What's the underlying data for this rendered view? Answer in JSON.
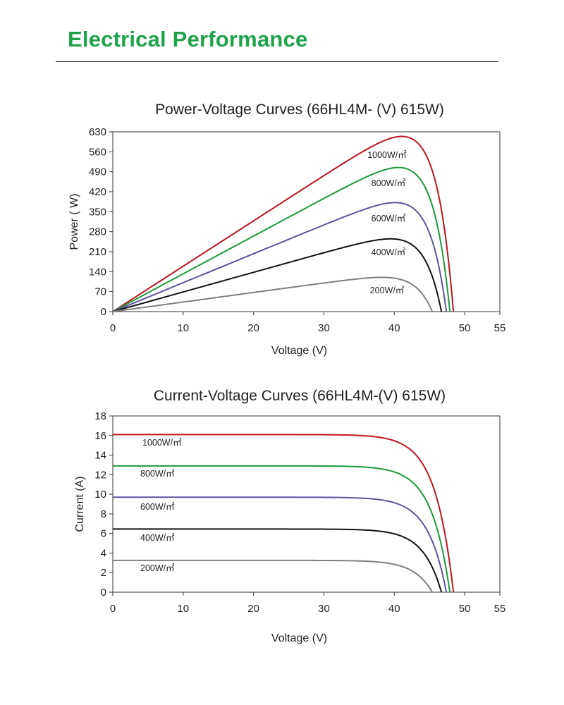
{
  "header": {
    "title": "Electrical Performance"
  },
  "chart_data": [
    {
      "type": "line",
      "title": "Power-Voltage Curves (66HL4M- (V)  615W)",
      "xlabel": "Voltage (V)",
      "ylabel": "Power ( W)",
      "xlim": [
        0,
        55
      ],
      "ylim": [
        0,
        630
      ],
      "xticks": [
        "0",
        "10",
        "20",
        "30",
        "40",
        "50",
        "55"
      ],
      "yticks": [
        "0",
        "70",
        "140",
        "210",
        "280",
        "350",
        "420",
        "490",
        "560",
        "630"
      ],
      "grid": false,
      "series": [
        {
          "name": "1000W/㎡",
          "color": "#c0141c",
          "isc": 16.1,
          "voc": 48.4,
          "vmp": 40.0,
          "pmax": 614
        },
        {
          "name": "800W/㎡",
          "color": "#1c9a3a",
          "isc": 12.9,
          "voc": 47.9,
          "vmp": 40.0,
          "pmax": 505
        },
        {
          "name": "600W/㎡",
          "color": "#5a55a0",
          "isc": 9.7,
          "voc": 47.4,
          "vmp": 39.8,
          "pmax": 382
        },
        {
          "name": "400W/㎡",
          "color": "#111111",
          "isc": 6.45,
          "voc": 46.7,
          "vmp": 39.7,
          "pmax": 255
        },
        {
          "name": "200W/㎡",
          "color": "#7f7f7f",
          "isc": 3.25,
          "voc": 45.4,
          "vmp": 39.0,
          "pmax": 120
        }
      ]
    },
    {
      "type": "line",
      "title": "Current-Voltage Curves (66HL4M-(V) 615W)",
      "xlabel": "Voltage (V)",
      "ylabel": "Current (A)",
      "xlim": [
        0,
        55
      ],
      "ylim": [
        0,
        18
      ],
      "xticks": [
        "0",
        "10",
        "20",
        "30",
        "40",
        "50",
        "55"
      ],
      "yticks": [
        "0",
        "2",
        "4",
        "6",
        "8",
        "10",
        "12",
        "14",
        "16",
        "18"
      ],
      "grid": false,
      "series": [
        {
          "name": "1000W/㎡",
          "color": "#c0141c",
          "isc": 16.1,
          "voc": 48.4
        },
        {
          "name": "800W/㎡",
          "color": "#1c9a3a",
          "isc": 12.9,
          "voc": 47.9
        },
        {
          "name": "600W/㎡",
          "color": "#5a55a0",
          "isc": 9.7,
          "voc": 47.4
        },
        {
          "name": "400W/㎡",
          "color": "#111111",
          "isc": 6.45,
          "voc": 46.7
        },
        {
          "name": "200W/㎡",
          "color": "#7f7f7f",
          "isc": 3.25,
          "voc": 45.4
        }
      ]
    }
  ]
}
